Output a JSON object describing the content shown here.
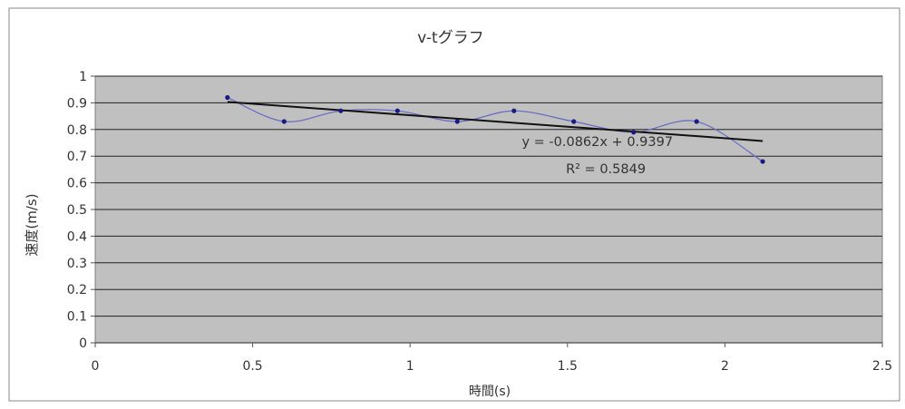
{
  "chart_data": {
    "type": "scatter",
    "title": "v-tグラフ",
    "xlabel": "時間(s)",
    "ylabel": "速度(m/s)",
    "xlim": [
      0,
      2.5
    ],
    "ylim": [
      0,
      1
    ],
    "x_ticks": [
      "0",
      "0.5",
      "1",
      "1.5",
      "2",
      "2.5"
    ],
    "y_ticks": [
      "0",
      "0.1",
      "0.2",
      "0.3",
      "0.4",
      "0.5",
      "0.6",
      "0.7",
      "0.8",
      "0.9",
      "1"
    ],
    "grid": true,
    "legend": "none",
    "series": [
      {
        "x": [
          0.42,
          0.6,
          0.78,
          0.96,
          1.15,
          1.33,
          1.52,
          1.71,
          1.91,
          2.12
        ],
        "y": [
          0.92,
          0.83,
          0.87,
          0.87,
          0.83,
          0.87,
          0.83,
          0.79,
          0.83,
          0.68
        ],
        "marker_color": "#1a1a80",
        "smooth_line_color": "#6b6fc4"
      }
    ],
    "trendline": {
      "slope": -0.0862,
      "intercept": 0.9397,
      "x_range": [
        0.42,
        2.12
      ],
      "color": "#111111",
      "equation": "y = -0.0862x + 0.9397",
      "r_squared": "R² = 0.5849"
    },
    "colors": {
      "plot_background": "#c0c0c0",
      "gridline": "#222222"
    }
  }
}
